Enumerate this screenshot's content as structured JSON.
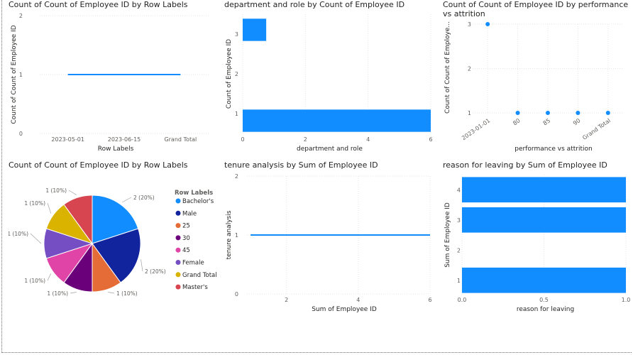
{
  "colors": {
    "primary": "#118DFF",
    "grid": "#e6e6e6",
    "pie": [
      "#118DFF",
      "#12239E",
      "#E66C37",
      "#6B007B",
      "#E044A7",
      "#744EC2",
      "#D9B300",
      "#D64550"
    ]
  },
  "charts": [
    {
      "title": "Count of Count of Employee ID by Row Labels",
      "type": "line",
      "categories": [
        "2023-05-01",
        "2023-06-15",
        "Grand Total"
      ],
      "values": [
        1,
        1,
        1
      ],
      "y_ticks": [
        "0",
        "1",
        "2"
      ],
      "ylim": [
        0,
        2
      ],
      "xlabel": "Row Labels",
      "ylabel": "Count of Count of Employee ID"
    },
    {
      "title": "department and role by Count of Employee ID",
      "type": "bar",
      "categories": [
        "3",
        "2",
        "1"
      ],
      "values": [
        0.75,
        0,
        6
      ],
      "x_ticks": [
        "0",
        "2",
        "4",
        "6"
      ],
      "xlim": [
        0,
        6
      ],
      "xlabel": "department and role",
      "ylabel": "Count of Employee ID"
    },
    {
      "title": "Count of Count of Employee ID by performance vs attrition",
      "type": "scatter",
      "categories": [
        "2023-01-01",
        "80",
        "85",
        "90",
        "Grand Total"
      ],
      "values": [
        3,
        1,
        1,
        1,
        1
      ],
      "y_ticks": [
        "1",
        "2",
        "3"
      ],
      "ylim": [
        1,
        3
      ],
      "xlabel": "performance vs attrition",
      "ylabel": "Count of Count of Employe..."
    },
    {
      "title": "Count of Count of Employee ID by Row Labels",
      "type": "pie",
      "legend_title": "Row Labels",
      "slices": [
        {
          "label": "Bachelor's",
          "value": 2,
          "text": "2 (20%)"
        },
        {
          "label": "Male",
          "value": 2,
          "text": "2 (20%)"
        },
        {
          "label": "25",
          "value": 1,
          "text": "1 (10%)"
        },
        {
          "label": "30",
          "value": 1,
          "text": "1 (10%)"
        },
        {
          "label": "45",
          "value": 1,
          "text": "1 (10%)"
        },
        {
          "label": "Female",
          "value": 1,
          "text": "1 (10%)"
        },
        {
          "label": "Grand Total",
          "value": 1,
          "text": "1 (10%)"
        },
        {
          "label": "Master's",
          "value": 1,
          "text": "1 (10%)"
        }
      ]
    },
    {
      "title": "tenure analysis by Sum of Employee ID",
      "type": "line",
      "x_values": [
        1,
        6
      ],
      "y_values": [
        1,
        1
      ],
      "x_ticks": [
        "2",
        "4",
        "6"
      ],
      "xlim": [
        0.9,
        6
      ],
      "y_ticks": [
        "0",
        "1",
        "2"
      ],
      "ylim": [
        0,
        2
      ],
      "xlabel": "Sum of Employee ID",
      "ylabel": "tenure analysis"
    },
    {
      "title": "reason for leaving by Sum of Employee ID",
      "type": "bar",
      "categories": [
        "4",
        "3",
        "2",
        "1"
      ],
      "values": [
        1,
        1,
        0,
        1
      ],
      "x_ticks": [
        "0.0",
        "0.5",
        "1.0"
      ],
      "xlim": [
        0,
        1
      ],
      "xlabel": "reason for leaving",
      "ylabel": "Sum of Employee ID"
    }
  ]
}
